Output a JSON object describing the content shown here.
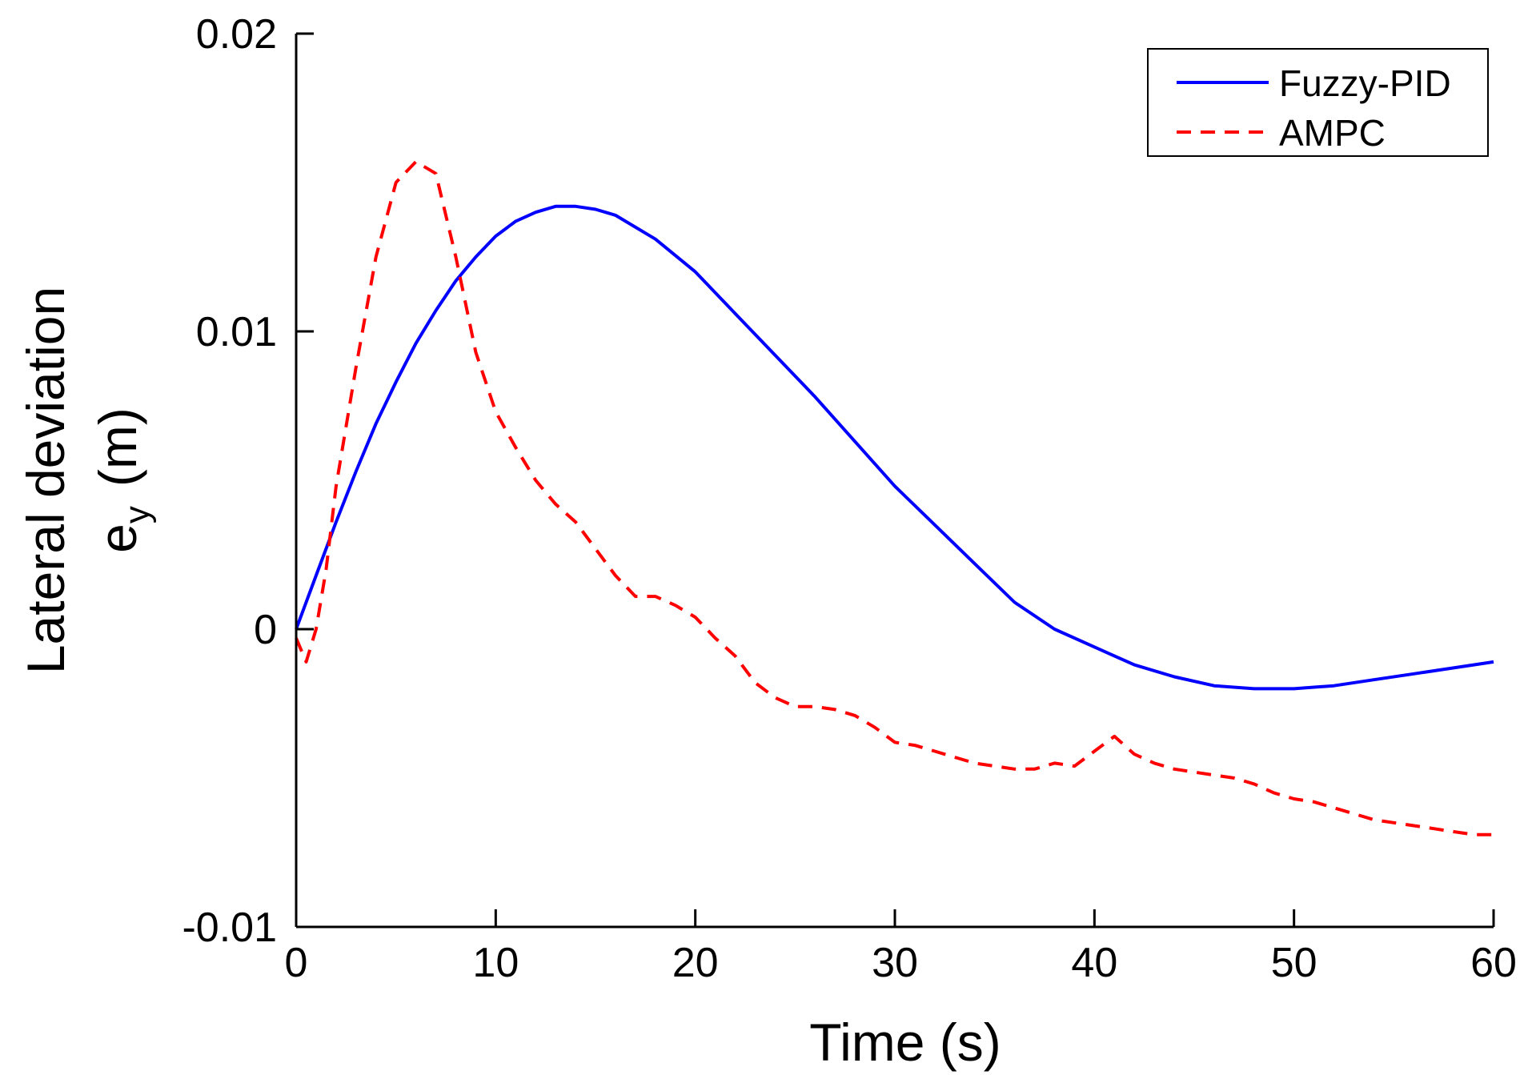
{
  "chart_data": {
    "type": "line",
    "title": "",
    "xlabel": "Time (s)",
    "ylabel": {
      "line1": "Lateral deviation",
      "symbol": "e",
      "subscript": "y",
      "unit": "(m)"
    },
    "xlim": [
      0,
      60
    ],
    "ylim": [
      -0.01,
      0.02
    ],
    "xticks": [
      0,
      10,
      20,
      30,
      40,
      50,
      60
    ],
    "xtick_labels": [
      "0",
      "10",
      "20",
      "30",
      "40",
      "50",
      "60"
    ],
    "yticks": [
      -0.01,
      0,
      0.01,
      0.02
    ],
    "ytick_labels": [
      "-0.01",
      "0",
      "0.01",
      "0.02"
    ],
    "grid": false,
    "legend_position": "top-right",
    "series": [
      {
        "name": "Fuzzy-PID",
        "color": "#0000ff",
        "style": "solid",
        "x": [
          0,
          1,
          2,
          3,
          4,
          5,
          6,
          7,
          8,
          9,
          10,
          11,
          12,
          13,
          14,
          15,
          16,
          18,
          20,
          22,
          24,
          26,
          28,
          30,
          32,
          34,
          36,
          38,
          40,
          42,
          44,
          46,
          48,
          50,
          52,
          54,
          56,
          58,
          60
        ],
        "y": [
          0,
          0.0018,
          0.0036,
          0.0053,
          0.0069,
          0.0083,
          0.0096,
          0.0107,
          0.0117,
          0.0125,
          0.0132,
          0.0137,
          0.014,
          0.0142,
          0.0142,
          0.0141,
          0.0139,
          0.0131,
          0.012,
          0.0106,
          0.0092,
          0.0078,
          0.0063,
          0.0048,
          0.0035,
          0.0022,
          0.0009,
          0.0,
          -0.0006,
          -0.0012,
          -0.0016,
          -0.0019,
          -0.002,
          -0.002,
          -0.0019,
          -0.0017,
          -0.0015,
          -0.0013,
          -0.0011
        ]
      },
      {
        "name": "AMPC",
        "color": "#ff0000",
        "style": "dashed",
        "x": [
          0,
          0.5,
          1,
          1.5,
          2,
          3,
          4,
          5,
          6,
          7,
          8,
          9,
          10,
          11,
          12,
          13,
          14,
          15,
          16,
          17,
          18,
          19,
          20,
          21,
          22,
          23,
          24,
          25,
          26,
          27,
          28,
          29,
          30,
          31,
          32,
          33,
          34,
          35,
          36,
          37,
          38,
          39,
          40,
          41,
          42,
          43,
          44,
          45,
          46,
          47,
          48,
          49,
          50,
          51,
          52,
          53,
          54,
          55,
          56,
          57,
          58,
          59,
          60
        ],
        "y": [
          -0.0003,
          -0.0011,
          0.0,
          0.002,
          0.0048,
          0.0088,
          0.0125,
          0.015,
          0.0157,
          0.0153,
          0.0125,
          0.0093,
          0.0073,
          0.0061,
          0.005,
          0.0042,
          0.0036,
          0.0027,
          0.0018,
          0.0011,
          0.0011,
          0.0008,
          0.0004,
          -0.0003,
          -0.0009,
          -0.0018,
          -0.0023,
          -0.0026,
          -0.0026,
          -0.0027,
          -0.0029,
          -0.0033,
          -0.0038,
          -0.0039,
          -0.0041,
          -0.0043,
          -0.0045,
          -0.0046,
          -0.0047,
          -0.0047,
          -0.0045,
          -0.0046,
          -0.0041,
          -0.0036,
          -0.0042,
          -0.0045,
          -0.0047,
          -0.0048,
          -0.0049,
          -0.005,
          -0.0052,
          -0.0055,
          -0.0057,
          -0.0058,
          -0.006,
          -0.0062,
          -0.0064,
          -0.0065,
          -0.0066,
          -0.0067,
          -0.0068,
          -0.0069,
          -0.0069
        ]
      }
    ]
  }
}
